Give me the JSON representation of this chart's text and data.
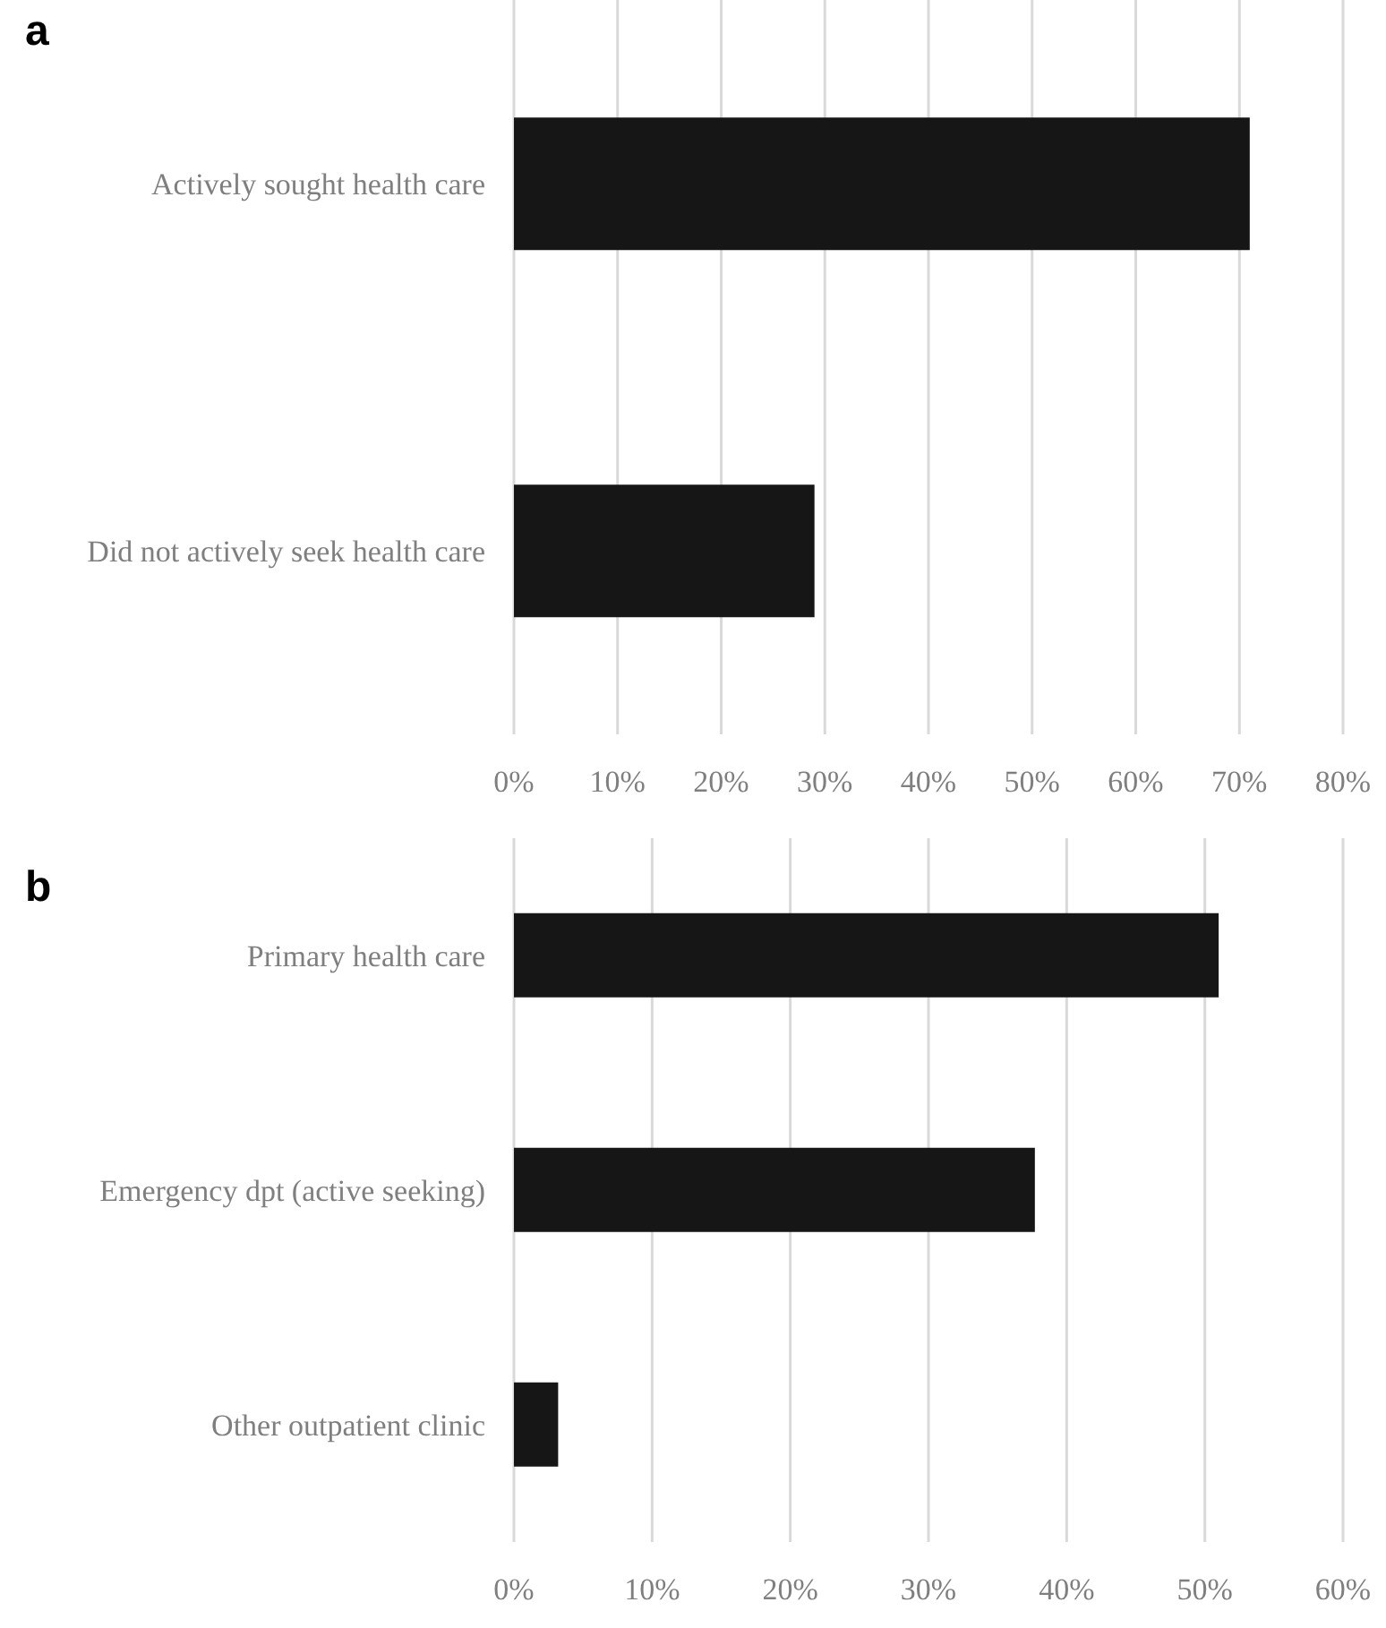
{
  "chart_data": [
    {
      "type": "bar",
      "title": "a",
      "orientation": "horizontal",
      "categories": [
        "Actively sought health care",
        "Did not actively seek health care"
      ],
      "values": [
        71,
        29
      ],
      "color": "#161616",
      "xlim": [
        0,
        80
      ],
      "xticks": [
        {
          "value": 0,
          "label": "0%"
        },
        {
          "value": 10,
          "label": "10%"
        },
        {
          "value": 20,
          "label": "20%"
        },
        {
          "value": 30,
          "label": "30%"
        },
        {
          "value": 40,
          "label": "40%"
        },
        {
          "value": 50,
          "label": "50%"
        },
        {
          "value": 60,
          "label": "60%"
        },
        {
          "value": 70,
          "label": "70%"
        },
        {
          "value": 80,
          "label": "80%"
        }
      ],
      "grid": "x"
    },
    {
      "type": "bar",
      "title": "b",
      "orientation": "horizontal",
      "categories": [
        "Primary health care",
        "Emergency dpt (active seeking)",
        "Other outpatient clinic"
      ],
      "values": [
        51,
        37.7,
        3.2
      ],
      "color": "#161616",
      "xlim": [
        0,
        60
      ],
      "xticks": [
        {
          "value": 0,
          "label": "0%"
        },
        {
          "value": 10,
          "label": "10%"
        },
        {
          "value": 20,
          "label": "20%"
        },
        {
          "value": 30,
          "label": "30%"
        },
        {
          "value": 40,
          "label": "40%"
        },
        {
          "value": 50,
          "label": "50%"
        },
        {
          "value": 60,
          "label": "60%"
        }
      ],
      "grid": "x"
    }
  ]
}
